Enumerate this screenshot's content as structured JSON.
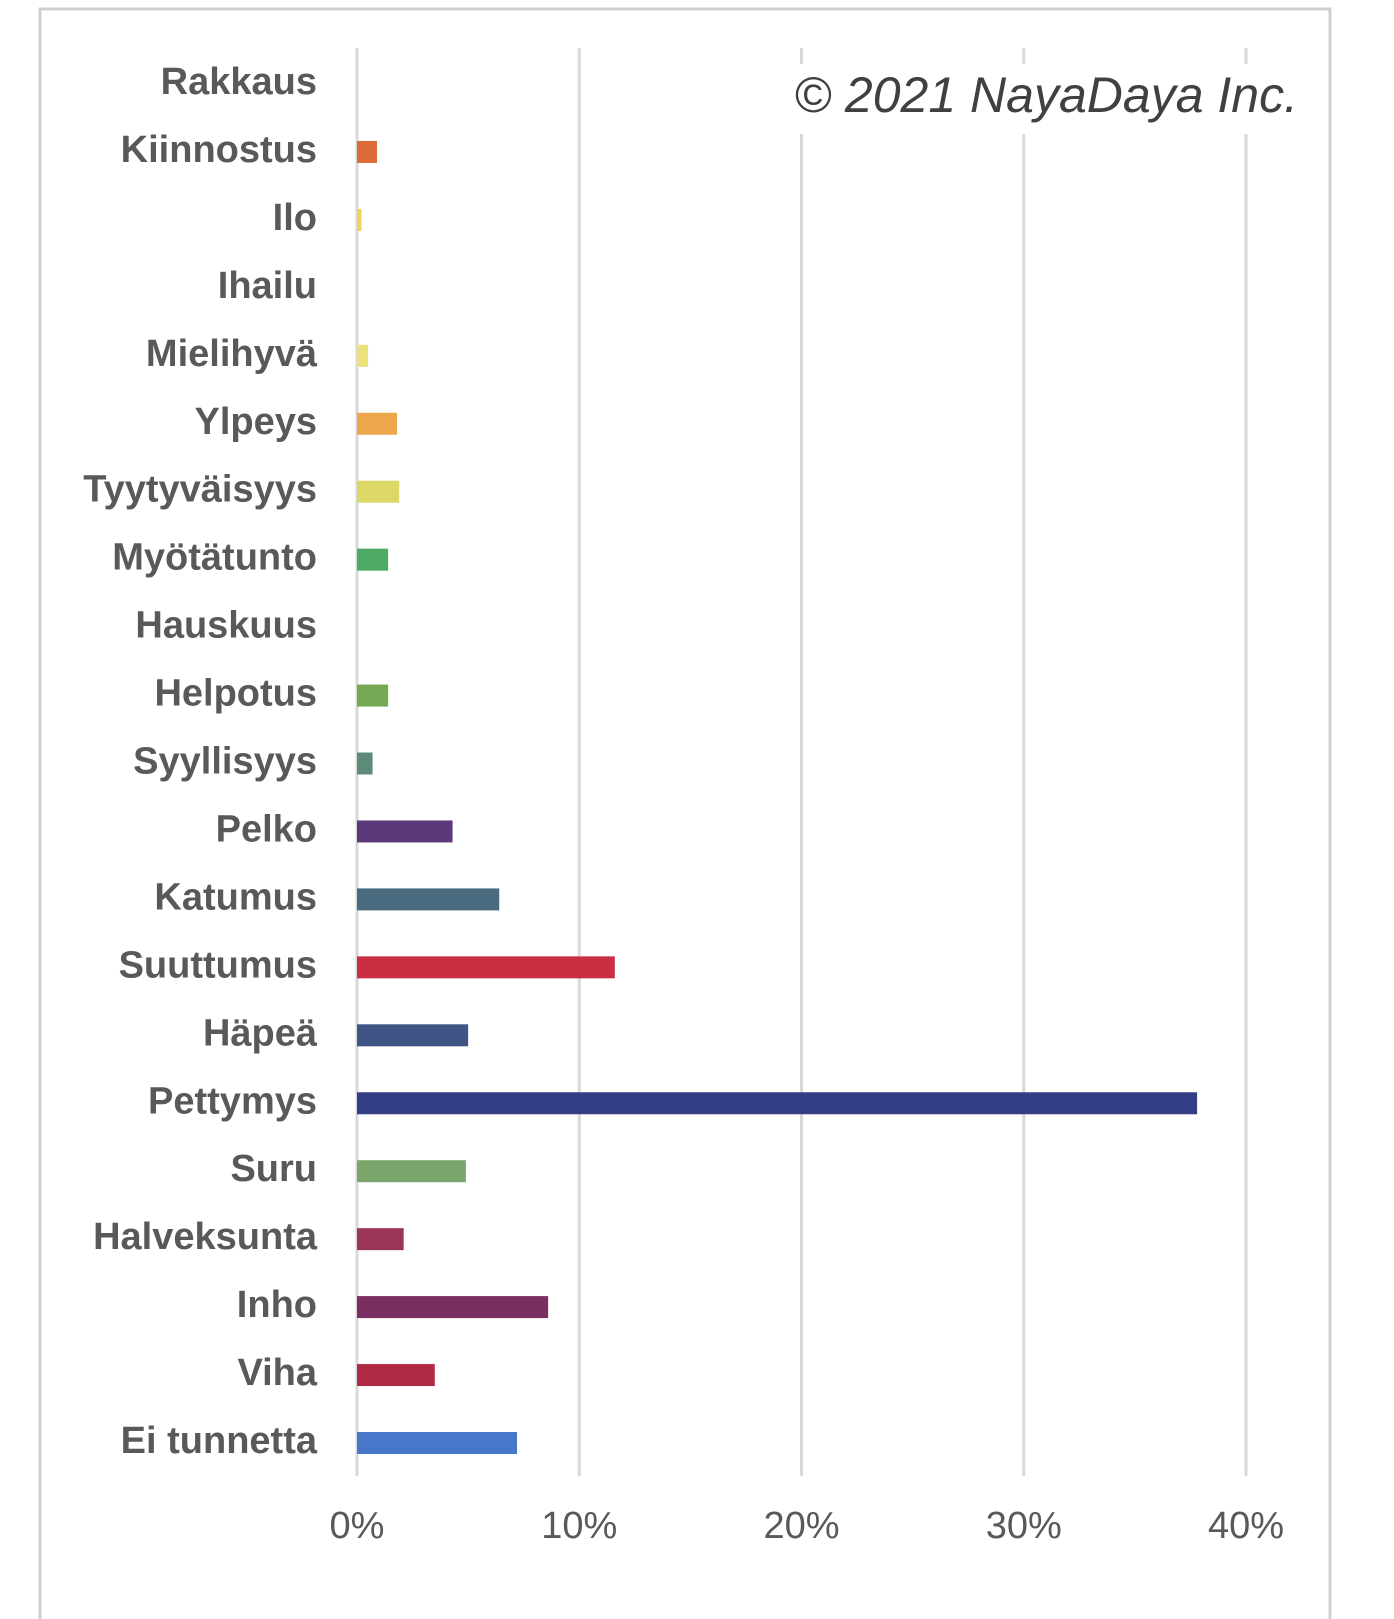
{
  "chart_data": {
    "type": "barh",
    "annotation": "© 2021 NayaDaya Inc.",
    "categories": [
      "Rakkaus",
      "Kiinnostus",
      "Ilo",
      "Ihailu",
      "Mielihyvä",
      "Ylpeys",
      "Tyytyväisyys",
      "Myötätunto",
      "Hauskuus",
      "Helpotus",
      "Syyllisyys",
      "Pelko",
      "Katumus",
      "Suuttumus",
      "Häpeä",
      "Pettymys",
      "Suru",
      "Halveksunta",
      "Inho",
      "Viha",
      "Ei tunnetta"
    ],
    "values": [
      0,
      0.9,
      0.2,
      0,
      0.5,
      1.8,
      1.9,
      1.4,
      0,
      1.4,
      0.7,
      4.3,
      6.4,
      11.6,
      5.0,
      37.8,
      4.9,
      2.1,
      8.6,
      3.5,
      7.2
    ],
    "colors": [
      "#c0392b",
      "#dd6b3a",
      "#f2d25a",
      "#e8a0b0",
      "#ede27a",
      "#eea64a",
      "#dcd866",
      "#4caa63",
      "#88c070",
      "#74a852",
      "#5e8a78",
      "#5a3a7a",
      "#4a6a80",
      "#c92e42",
      "#3f5484",
      "#343e84",
      "#7aa66c",
      "#9a3558",
      "#7a2e62",
      "#b02a45",
      "#4677c8"
    ],
    "xlim": [
      0,
      40
    ],
    "xticks": [
      {
        "value": 0,
        "label": "0%"
      },
      {
        "value": 10,
        "label": "10%"
      },
      {
        "value": 20,
        "label": "20%"
      },
      {
        "value": 30,
        "label": "30%"
      },
      {
        "value": 40,
        "label": "40%"
      }
    ],
    "grid": true
  }
}
